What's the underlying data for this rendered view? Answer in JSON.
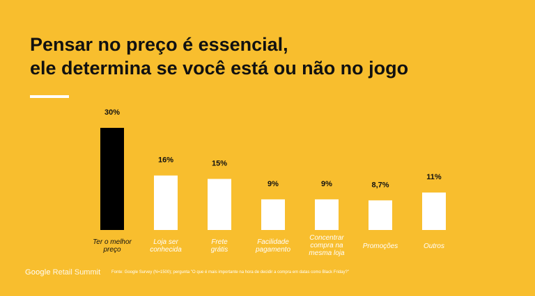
{
  "slide": {
    "title_line1": "Pensar no preço é essencial,",
    "title_line2": "ele determina se você está ou não no jogo",
    "footer_brand": "Google",
    "footer_event": "Retail Summit",
    "source": "Fonte: Google Survey (N=1500); pergunta \"O que é mais importante na hora de decidir a compra em datas como Black Friday?\""
  },
  "colors": {
    "background": "#F8BE2E",
    "highlight_bar": "#000000",
    "bar": "#FFFFFF",
    "text": "#111111",
    "category_label": "#FFFFFF"
  },
  "chart_data": {
    "type": "bar",
    "categories": [
      "Ter o melhor preço",
      "Loja ser conhecida",
      "Frete grátis",
      "Facilidade pagamento",
      "Concentrar compra na mesma loja",
      "Promoções",
      "Outros"
    ],
    "values": [
      30,
      16,
      15,
      9,
      9,
      8.7,
      11
    ],
    "value_labels": [
      "30%",
      "16%",
      "15%",
      "9%",
      "9%",
      "8,7%",
      "11%"
    ],
    "highlight_index": 0,
    "title": "",
    "xlabel": "",
    "ylabel": "",
    "ylim": [
      0,
      30
    ],
    "grid": false
  }
}
